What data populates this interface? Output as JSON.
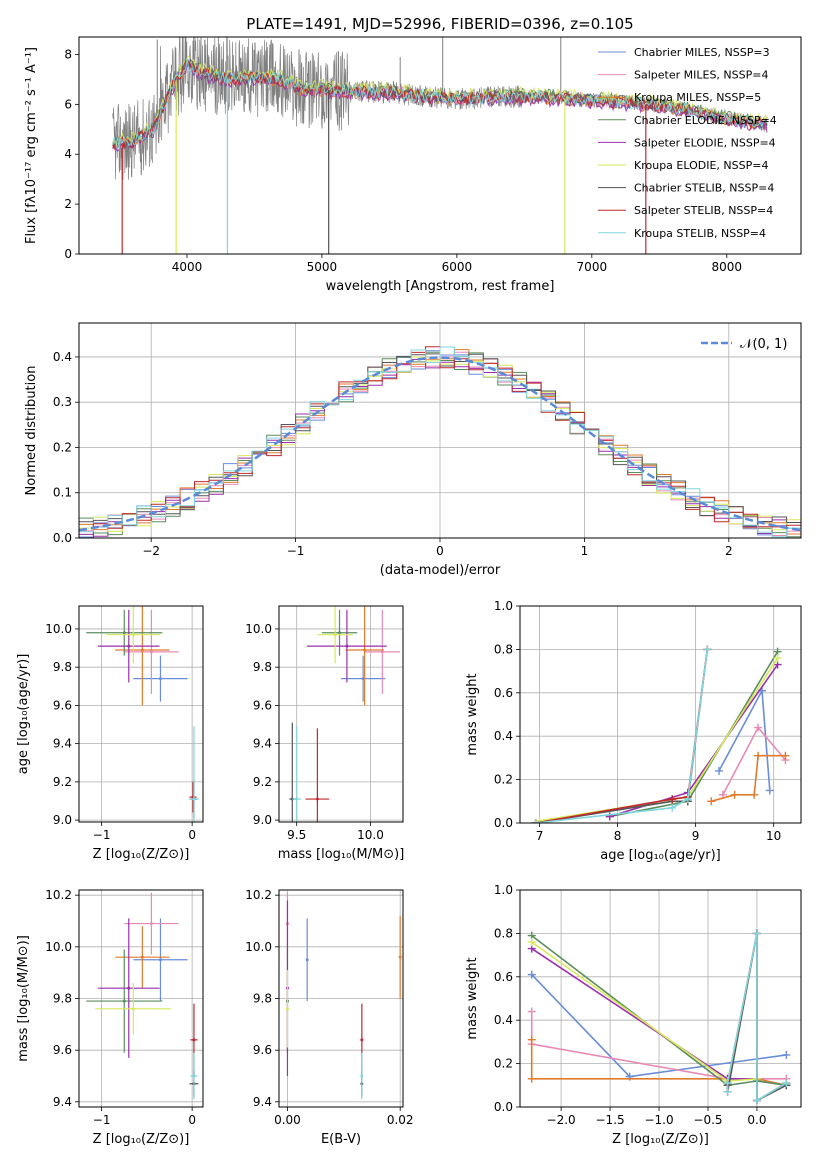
{
  "figure": {
    "title": "PLATE=1491, MJD=52996, FIBERID=0396, z=0.105"
  },
  "colors": {
    "chabrier_miles": "#6a8dd8",
    "salpeter_miles": "#e98ab6",
    "kroupa_miles": "#e07b2c",
    "chabrier_elodie": "#5b8e5b",
    "salpeter_elodie": "#9b2fae",
    "kroupa_elodie": "#d8e85a",
    "chabrier_stelib": "#555555",
    "salpeter_stelib": "#c0282d",
    "kroupa_stelib": "#7fd6dc",
    "data": "#808080",
    "gaussian": "#5b8bd8"
  },
  "chart_data": [
    {
      "id": "spectrum",
      "type": "line",
      "xlabel": "wavelength [Angstrom, rest frame]",
      "ylabel": "Flux [fλ10⁻¹⁷ erg cm⁻² s⁻¹ A⁻¹]",
      "xlim": [
        3200,
        8550
      ],
      "ylim": [
        0,
        8.7
      ],
      "xticks": [
        "4000",
        "5000",
        "6000",
        "7000",
        "8000"
      ],
      "yticks": [
        "0",
        "2",
        "4",
        "6",
        "8"
      ],
      "legend_position": "top-right",
      "series": [
        {
          "name": "Chabrier MILES, N_SSP=3"
        },
        {
          "name": "Salpeter MILES, N_SSP=4"
        },
        {
          "name": "Kroupa MILES, N_SSP=5"
        },
        {
          "name": "Chabrier ELODIE, N_SSP=4"
        },
        {
          "name": "Salpeter ELODIE, N_SSP=4"
        },
        {
          "name": "Kroupa ELODIE, N_SSP=4"
        },
        {
          "name": "Chabrier STELIB, N_SSP=4"
        },
        {
          "name": "Salpeter STELIB, N_SSP=4"
        },
        {
          "name": "Kroupa STELIB, N_SSP=4"
        }
      ],
      "continuum": {
        "x": [
          3450,
          3600,
          3750,
          3900,
          4000,
          4100,
          4300,
          4500,
          4700,
          4850,
          5000,
          5200,
          5500,
          5800,
          6000,
          6300,
          6600,
          6900,
          7200,
          7400,
          7700,
          8000,
          8300
        ],
        "y": [
          4.4,
          4.5,
          5.0,
          6.8,
          7.6,
          7.3,
          7.0,
          7.1,
          7.0,
          6.6,
          6.6,
          6.5,
          6.5,
          6.3,
          6.2,
          6.3,
          6.3,
          6.2,
          6.1,
          6.0,
          5.8,
          5.4,
          5.2
        ]
      }
    },
    {
      "id": "residuals",
      "type": "line",
      "xlabel": "(data-model)/error",
      "ylabel": "Normed distribution",
      "xlim": [
        -2.5,
        2.5
      ],
      "ylim": [
        0,
        0.475
      ],
      "xticks": [
        "−2",
        "−1",
        "0",
        "1",
        "2"
      ],
      "yticks": [
        "0.0",
        "0.1",
        "0.2",
        "0.3",
        "0.4"
      ],
      "legend": "𝒩(0, 1)",
      "legend_position": "top-right",
      "gaussian": {
        "mu": 0,
        "sigma": 1
      }
    },
    {
      "id": "age-vs-Z",
      "type": "scatter",
      "xlabel": "Z [log₁₀(Z/Z⊙)]",
      "ylabel": "age  [log₁₀(age/yr)]",
      "xlim": [
        -1.25,
        0.12
      ],
      "ylim": [
        8.99,
        10.12
      ],
      "xticks": [
        "−1",
        "0"
      ],
      "yticks": [
        "9.0",
        "9.2",
        "9.4",
        "9.6",
        "9.8",
        "10.0"
      ],
      "points": [
        {
          "model": "chabrier_miles",
          "x": -0.35,
          "y": 9.74,
          "xerr": 0.3,
          "yerr": 0.12
        },
        {
          "model": "salpeter_miles",
          "x": -0.45,
          "y": 9.88,
          "xerr": 0.3,
          "yerr": 0.22
        },
        {
          "model": "kroupa_miles",
          "x": -0.55,
          "y": 9.89,
          "xerr": 0.3,
          "yerr": 0.29
        },
        {
          "model": "chabrier_elodie",
          "x": -0.75,
          "y": 9.98,
          "xerr": 0.42,
          "yerr": 0.12
        },
        {
          "model": "salpeter_elodie",
          "x": -0.7,
          "y": 9.91,
          "xerr": 0.34,
          "yerr": 0.19
        },
        {
          "model": "kroupa_elodie",
          "x": -0.65,
          "y": 9.97,
          "xerr": 0.3,
          "yerr": 0.15
        },
        {
          "model": "chabrier_stelib",
          "x": 0.02,
          "y": 9.11,
          "xerr": 0.05,
          "yerr": 0.1
        },
        {
          "model": "salpeter_stelib",
          "x": 0.01,
          "y": 9.12,
          "xerr": 0.04,
          "yerr": 0.08
        },
        {
          "model": "kroupa_stelib",
          "x": 0.02,
          "y": 9.11,
          "xerr": 0.05,
          "yerr": 0.38
        }
      ]
    },
    {
      "id": "age-vs-mass",
      "type": "scatter",
      "xlabel": "mass [log₁₀(M/M⊙)]",
      "ylabel": "",
      "xlim": [
        9.38,
        10.22
      ],
      "ylim": [
        8.99,
        10.12
      ],
      "xticks": [
        "9.5",
        "10.0"
      ],
      "yticks": [
        "9.0",
        "9.2",
        "9.4",
        "9.6",
        "9.8",
        "10.0"
      ],
      "points": [
        {
          "model": "chabrier_miles",
          "x": 9.95,
          "y": 9.74,
          "xerr": 0.15,
          "yerr": 0.12
        },
        {
          "model": "salpeter_miles",
          "x": 10.08,
          "y": 9.88,
          "xerr": 0.12,
          "yerr": 0.22
        },
        {
          "model": "kroupa_miles",
          "x": 9.96,
          "y": 9.89,
          "xerr": 0.13,
          "yerr": 0.29
        },
        {
          "model": "chabrier_elodie",
          "x": 9.79,
          "y": 9.98,
          "xerr": 0.12,
          "yerr": 0.12
        },
        {
          "model": "salpeter_elodie",
          "x": 9.84,
          "y": 9.91,
          "xerr": 0.27,
          "yerr": 0.19
        },
        {
          "model": "kroupa_elodie",
          "x": 9.76,
          "y": 9.97,
          "xerr": 0.12,
          "yerr": 0.15
        },
        {
          "model": "chabrier_stelib",
          "x": 9.47,
          "y": 9.11,
          "xerr": 0.02,
          "yerr": 0.4
        },
        {
          "model": "salpeter_stelib",
          "x": 9.64,
          "y": 9.11,
          "xerr": 0.08,
          "yerr": 0.37
        },
        {
          "model": "kroupa_stelib",
          "x": 9.5,
          "y": 9.11,
          "xerr": 0.03,
          "yerr": 0.38
        }
      ]
    },
    {
      "id": "mass-weight-vs-age",
      "type": "line",
      "xlabel": "age  [log₁₀(age/yr)]",
      "ylabel": "mass weight",
      "xlim": [
        6.75,
        10.35
      ],
      "ylim": [
        0,
        1.0
      ],
      "xticks": [
        "7",
        "8",
        "9",
        "10"
      ],
      "yticks": [
        "0.0",
        "0.2",
        "0.4",
        "0.6",
        "0.8",
        "1.0"
      ],
      "series": [
        {
          "model": "chabrier_miles",
          "x": [
            9.3,
            9.85,
            9.95
          ],
          "y": [
            0.24,
            0.61,
            0.15
          ]
        },
        {
          "model": "salpeter_miles",
          "x": [
            9.35,
            9.8,
            10.15
          ],
          "y": [
            0.13,
            0.44,
            0.29
          ]
        },
        {
          "model": "kroupa_miles",
          "x": [
            9.2,
            9.5,
            9.75,
            9.8,
            10.15
          ],
          "y": [
            0.1,
            0.13,
            0.13,
            0.31,
            0.31
          ]
        },
        {
          "model": "chabrier_elodie",
          "x": [
            7.9,
            8.9,
            10.05
          ],
          "y": [
            0.03,
            0.1,
            0.79
          ]
        },
        {
          "model": "salpeter_elodie",
          "x": [
            7.9,
            8.9,
            10.05
          ],
          "y": [
            0.03,
            0.14,
            0.73
          ]
        },
        {
          "model": "kroupa_elodie",
          "x": [
            7.0,
            8.9,
            10.05
          ],
          "y": [
            0.01,
            0.12,
            0.76
          ]
        },
        {
          "model": "chabrier_stelib",
          "x": [
            6.95,
            8.7,
            8.9,
            9.15
          ],
          "y": [
            0.0,
            0.1,
            0.1,
            0.8
          ]
        },
        {
          "model": "salpeter_stelib",
          "x": [
            6.95,
            8.7,
            8.9,
            9.15
          ],
          "y": [
            0.0,
            0.11,
            0.12,
            0.8
          ]
        },
        {
          "model": "kroupa_stelib",
          "x": [
            6.95,
            8.7,
            8.9,
            9.15
          ],
          "y": [
            0.0,
            0.07,
            0.11,
            0.8
          ]
        }
      ]
    },
    {
      "id": "mass-vs-Z",
      "type": "scatter",
      "xlabel": "Z [log₁₀(Z/Z⊙)]",
      "ylabel": "mass [log₁₀(M/M⊙)]",
      "xlim": [
        -1.25,
        0.12
      ],
      "ylim": [
        9.38,
        10.22
      ],
      "xticks": [
        "−1",
        "0"
      ],
      "yticks": [
        "9.4",
        "9.6",
        "9.8",
        "10.0",
        "10.2"
      ],
      "points": [
        {
          "model": "chabrier_miles",
          "x": -0.35,
          "y": 9.95,
          "xerr": 0.3,
          "yerr": 0.16
        },
        {
          "model": "salpeter_miles",
          "x": -0.45,
          "y": 10.09,
          "xerr": 0.3,
          "yerr": 0.12
        },
        {
          "model": "kroupa_miles",
          "x": -0.55,
          "y": 9.96,
          "xerr": 0.3,
          "yerr": 0.12
        },
        {
          "model": "chabrier_elodie",
          "x": -0.75,
          "y": 9.79,
          "xerr": 0.42,
          "yerr": 0.2
        },
        {
          "model": "salpeter_elodie",
          "x": -0.7,
          "y": 9.84,
          "xerr": 0.34,
          "yerr": 0.27
        },
        {
          "model": "kroupa_elodie",
          "x": -0.65,
          "y": 9.76,
          "xerr": 0.42,
          "yerr": 0.1
        },
        {
          "model": "chabrier_stelib",
          "x": 0.02,
          "y": 9.47,
          "xerr": 0.05,
          "yerr": 0.05
        },
        {
          "model": "salpeter_stelib",
          "x": 0.02,
          "y": 9.64,
          "xerr": 0.04,
          "yerr": 0.14
        },
        {
          "model": "kroupa_stelib",
          "x": 0.02,
          "y": 9.5,
          "xerr": 0.04,
          "yerr": 0.09
        }
      ]
    },
    {
      "id": "mass-vs-ebv",
      "type": "scatter",
      "xlabel": "E(B-V)",
      "ylabel": "",
      "xlim": [
        -0.0015,
        0.0205
      ],
      "ylim": [
        9.38,
        10.22
      ],
      "xticks": [
        "0.00",
        "0.02"
      ],
      "yticks": [
        "9.4",
        "9.6",
        "9.8",
        "10.0",
        "10.2"
      ],
      "points": [
        {
          "model": "chabrier_miles",
          "x": 0.0035,
          "y": 9.95,
          "yerr": 0.16
        },
        {
          "model": "salpeter_miles",
          "x": 0.0,
          "y": 10.09,
          "yerr": 0.12
        },
        {
          "model": "kroupa_miles",
          "x": 0.02,
          "y": 9.96,
          "yerr": 0.16
        },
        {
          "model": "chabrier_elodie",
          "x": 0.0,
          "y": 9.79,
          "yerr": 0.2
        },
        {
          "model": "salpeter_elodie",
          "x": 0.0,
          "y": 9.84,
          "yerr": 0.34
        },
        {
          "model": "kroupa_elodie",
          "x": 0.0,
          "y": 9.76,
          "yerr": 0.15
        },
        {
          "model": "chabrier_stelib",
          "x": 0.0132,
          "y": 9.47,
          "yerr": 0.05
        },
        {
          "model": "salpeter_stelib",
          "x": 0.0132,
          "y": 9.64,
          "yerr": 0.14
        },
        {
          "model": "kroupa_stelib",
          "x": 0.0132,
          "y": 9.5,
          "yerr": 0.09
        }
      ]
    },
    {
      "id": "mass-weight-vs-Z",
      "type": "line",
      "xlabel": "Z [log₁₀(Z/Z⊙)]",
      "ylabel": "mass weight",
      "xlim": [
        -2.42,
        0.45
      ],
      "ylim": [
        0,
        1.0
      ],
      "xticks": [
        "−2.0",
        "−1.5",
        "−1.0",
        "−0.5",
        "0.0"
      ],
      "yticks": [
        "0.0",
        "0.2",
        "0.4",
        "0.6",
        "0.8",
        "1.0"
      ],
      "series": [
        {
          "model": "chabrier_miles",
          "x": [
            -2.3,
            -1.3,
            0.3
          ],
          "y": [
            0.61,
            0.14,
            0.24
          ]
        },
        {
          "model": "salpeter_miles",
          "x": [
            -2.3,
            -2.3,
            -0.3,
            0.3
          ],
          "y": [
            0.44,
            0.29,
            0.13,
            0.13
          ]
        },
        {
          "model": "kroupa_miles",
          "x": [
            -2.3,
            -2.3,
            0.0,
            0.3
          ],
          "y": [
            0.31,
            0.13,
            0.13,
            0.1
          ]
        },
        {
          "model": "chabrier_elodie",
          "x": [
            -2.3,
            -0.3,
            0.0,
            0.3
          ],
          "y": [
            0.79,
            0.1,
            0.12,
            0.1
          ]
        },
        {
          "model": "salpeter_elodie",
          "x": [
            -2.3,
            -0.3,
            0.0
          ],
          "y": [
            0.73,
            0.13,
            0.13
          ]
        },
        {
          "model": "kroupa_elodie",
          "x": [
            -2.3,
            -0.3,
            0.0
          ],
          "y": [
            0.76,
            0.12,
            0.13
          ]
        },
        {
          "model": "chabrier_stelib",
          "x": [
            -0.3,
            -0.3,
            0.0,
            0.0,
            0.3
          ],
          "y": [
            0.1,
            0.07,
            0.8,
            0.03,
            0.1
          ]
        },
        {
          "model": "salpeter_stelib",
          "x": [
            -0.3,
            0.0,
            0.0,
            0.3
          ],
          "y": [
            0.11,
            0.8,
            0.03,
            0.11
          ]
        },
        {
          "model": "kroupa_stelib",
          "x": [
            -0.3,
            -0.3,
            0.0,
            0.0,
            0.3
          ],
          "y": [
            0.07,
            0.11,
            0.8,
            0.03,
            0.11
          ]
        }
      ]
    }
  ]
}
